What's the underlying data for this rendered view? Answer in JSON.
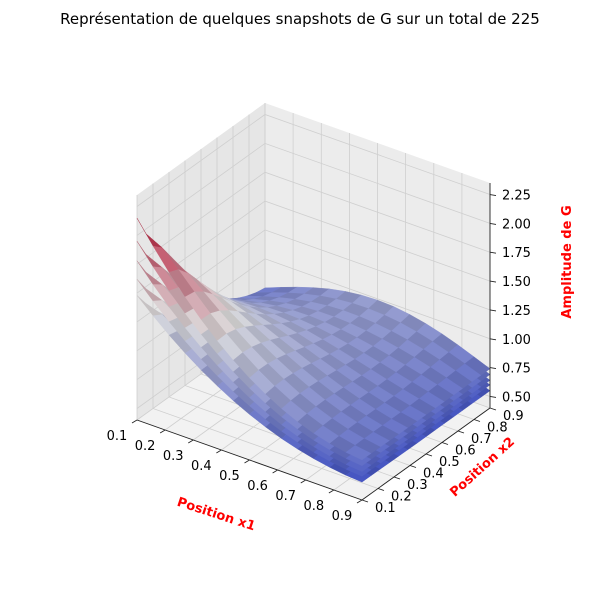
{
  "chart_data": {
    "type": "surface3d",
    "title": "Représentation de quelques snapshots de G sur un total de 225",
    "xlabel": "Position x1",
    "ylabel": "Position x2",
    "zlabel": "Amplitude de G",
    "label_color": "#ff0000",
    "colormap": "coolwarm",
    "colormap_low": "#3b4cc0",
    "colormap_mid": "#dddddd",
    "colormap_high": "#b40426",
    "xlim": [
      0.1,
      0.9
    ],
    "ylim": [
      0.1,
      0.9
    ],
    "zlim": [
      0.4,
      2.35
    ],
    "x_ticks": [
      "0.1",
      "0.2",
      "0.3",
      "0.4",
      "0.5",
      "0.6",
      "0.7",
      "0.8",
      "0.9"
    ],
    "y_ticks": [
      "0.1",
      "0.2",
      "0.3",
      "0.4",
      "0.5",
      "0.6",
      "0.7",
      "0.8",
      "0.9"
    ],
    "z_ticks": [
      "0.50",
      "0.75",
      "1.00",
      "1.25",
      "1.50",
      "1.75",
      "2.00",
      "2.25"
    ],
    "grid": true,
    "series": [
      {
        "amp_corner": 1.48,
        "amp_far": 0.55,
        "ridge": 1.2
      },
      {
        "amp_corner": 1.62,
        "amp_far": 0.6,
        "ridge": 1.26
      },
      {
        "amp_corner": 1.78,
        "amp_far": 0.64,
        "ridge": 1.32
      },
      {
        "amp_corner": 1.95,
        "amp_far": 0.69,
        "ridge": 1.38
      },
      {
        "amp_corner": 2.15,
        "amp_far": 0.74,
        "ridge": 1.45
      }
    ]
  }
}
